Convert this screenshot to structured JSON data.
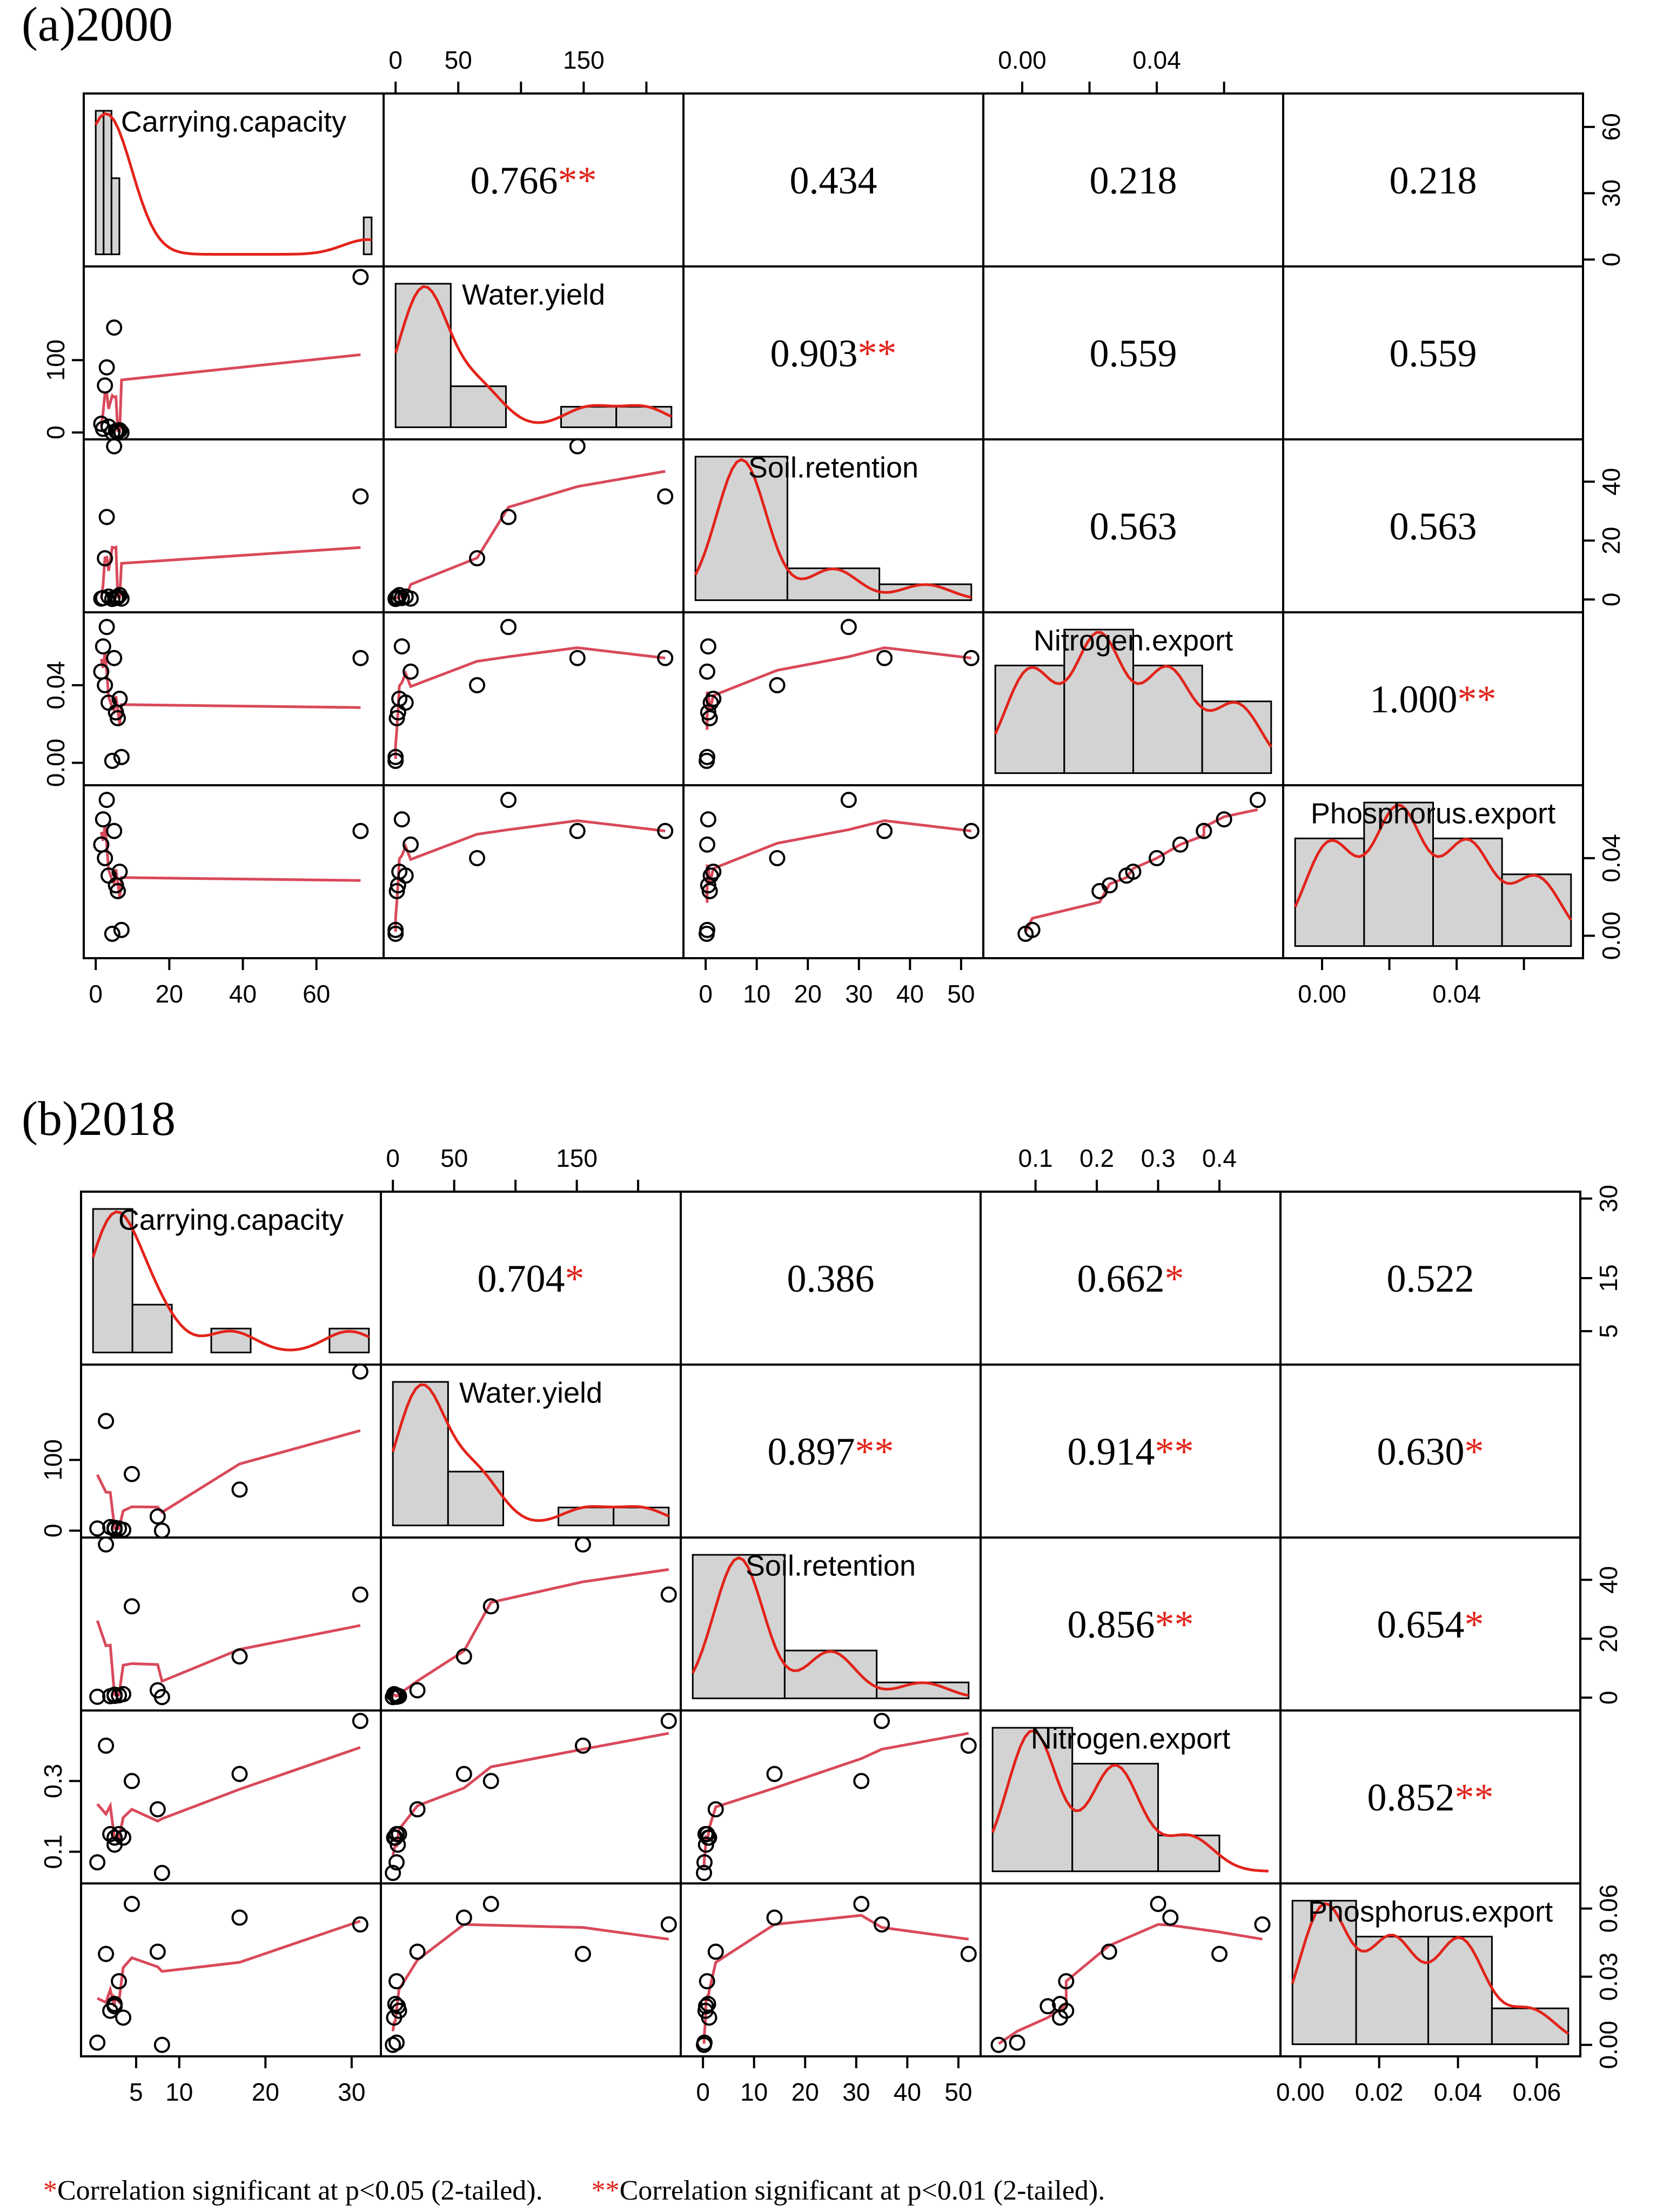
{
  "figure": {
    "footnote": {
      "single_star": "*",
      "single_text": "Correlation significant at p<0.05 (2-tailed).",
      "double_star": "**",
      "double_text": "Correlation significant at p<0.01 (2-tailed)."
    },
    "colors": {
      "axis": "#000000",
      "bar_fill": "#d3d3d3",
      "curve": "#e2231a",
      "smooth": "#d9495a",
      "point": "#000000"
    }
  },
  "chart_data": [
    {
      "type": "scatter",
      "subtype": "correlation-matrix",
      "title": "(a)2000",
      "variables": [
        "Carrying.capacity",
        "Water.yield",
        "Soil.retention",
        "Nitrogen.export",
        "Phosphorus.export"
      ],
      "correlations": [
        {
          "row": 0,
          "col": 1,
          "value": "0.766",
          "sig": "**"
        },
        {
          "row": 0,
          "col": 2,
          "value": "0.434",
          "sig": ""
        },
        {
          "row": 0,
          "col": 3,
          "value": "0.218",
          "sig": ""
        },
        {
          "row": 0,
          "col": 4,
          "value": "0.218",
          "sig": ""
        },
        {
          "row": 1,
          "col": 2,
          "value": "0.903",
          "sig": "**"
        },
        {
          "row": 1,
          "col": 3,
          "value": "0.559",
          "sig": ""
        },
        {
          "row": 1,
          "col": 4,
          "value": "0.559",
          "sig": ""
        },
        {
          "row": 2,
          "col": 3,
          "value": "0.563",
          "sig": ""
        },
        {
          "row": 2,
          "col": 4,
          "value": "0.563",
          "sig": ""
        },
        {
          "row": 3,
          "col": 4,
          "value": "1.000",
          "sig": "**"
        }
      ],
      "ranges": [
        [
          0,
          75
        ],
        [
          0,
          220
        ],
        [
          -2,
          52
        ],
        [
          -0.008,
          0.074
        ],
        [
          -0.008,
          0.074
        ]
      ],
      "points": {
        "Carrying.capacity": [
          1.5,
          2.0,
          2.5,
          3.0,
          3.5,
          4.5,
          5.0,
          5.5,
          6.0,
          6.5,
          7.0,
          72.0
        ],
        "Water.yield": [
          12,
          5,
          65,
          90,
          8,
          0,
          145,
          2,
          1,
          3,
          0,
          215
        ],
        "Soil.retention": [
          0.3,
          0.5,
          14,
          28,
          1,
          0.2,
          52,
          0.5,
          0.8,
          1.5,
          0.3,
          35
        ],
        "Nitrogen.export": [
          0.047,
          0.06,
          0.04,
          0.07,
          0.031,
          0.001,
          0.054,
          0.026,
          0.023,
          0.033,
          0.003,
          0.054
        ],
        "Phosphorus.export": [
          0.047,
          0.06,
          0.04,
          0.07,
          0.031,
          0.001,
          0.054,
          0.026,
          0.023,
          0.033,
          0.003,
          0.054
        ]
      },
      "histograms": [
        {
          "var": "Carrying.capacity",
          "breaks": [
            2,
            4,
            6,
            8,
            70,
            72
          ],
          "counts": [
            66,
            66,
            35,
            0,
            17
          ],
          "density_max": 66
        },
        {
          "var": "Water.yield",
          "breaks": [
            0,
            50,
            100,
            150,
            200,
            250
          ],
          "counts": [
            7,
            2,
            0,
            1,
            1
          ],
          "density_max": 7
        },
        {
          "var": "Soil.retention",
          "breaks": [
            0,
            17,
            34,
            51
          ],
          "counts": [
            9,
            2,
            1
          ],
          "density_max": 9
        },
        {
          "var": "Nitrogen.export",
          "breaks": [
            0,
            0.02,
            0.04,
            0.06,
            0.08
          ],
          "counts": [
            3,
            4,
            3,
            2
          ],
          "density_max": 4
        },
        {
          "var": "Phosphorus.export",
          "breaks": [
            0,
            0.02,
            0.04,
            0.06,
            0.08
          ],
          "counts": [
            3,
            4,
            3,
            2
          ],
          "density_max": 4
        }
      ],
      "axes": {
        "top": [
          {
            "col": 1,
            "ticks": [
              {
                "v": 0,
                "label": "0"
              },
              {
                "v": 50,
                "label": "50"
              },
              {
                "v": 100,
                "label": ""
              },
              {
                "v": 150,
                "label": "150"
              },
              {
                "v": 200,
                "label": ""
              }
            ]
          },
          {
            "col": 3,
            "ticks": [
              {
                "v": 0.0,
                "label": "0.00"
              },
              {
                "v": 0.02,
                "label": ""
              },
              {
                "v": 0.04,
                "label": "0.04"
              },
              {
                "v": 0.06,
                "label": ""
              }
            ]
          }
        ],
        "bottom": [
          {
            "col": 0,
            "ticks": [
              {
                "v": 0,
                "label": "0"
              },
              {
                "v": 20,
                "label": "20"
              },
              {
                "v": 40,
                "label": "40"
              },
              {
                "v": 60,
                "label": "60"
              }
            ]
          },
          {
            "col": 2,
            "ticks": [
              {
                "v": 0,
                "label": "0"
              },
              {
                "v": 10,
                "label": "10"
              },
              {
                "v": 20,
                "label": "20"
              },
              {
                "v": 30,
                "label": "30"
              },
              {
                "v": 40,
                "label": "40"
              },
              {
                "v": 50,
                "label": "50"
              }
            ]
          },
          {
            "col": 4,
            "ticks": [
              {
                "v": 0.0,
                "label": "0.00"
              },
              {
                "v": 0.02,
                "label": ""
              },
              {
                "v": 0.04,
                "label": "0.04"
              },
              {
                "v": 0.06,
                "label": ""
              }
            ]
          }
        ],
        "left": [
          {
            "row": 1,
            "ticks": [
              {
                "v": 0,
                "label": "0"
              },
              {
                "v": 100,
                "label": "100"
              }
            ]
          },
          {
            "row": 3,
            "ticks": [
              {
                "v": 0.0,
                "label": "0.00"
              },
              {
                "v": 0.04,
                "label": "0.04"
              }
            ]
          }
        ],
        "right": [
          {
            "row": 0,
            "range": [
              0,
              72
            ],
            "ticks": [
              {
                "v": 0,
                "label": "0"
              },
              {
                "v": 30,
                "label": "30"
              },
              {
                "v": 60,
                "label": "60"
              }
            ]
          },
          {
            "row": 2,
            "ticks": [
              {
                "v": 0,
                "label": "0"
              },
              {
                "v": 20,
                "label": "20"
              },
              {
                "v": 40,
                "label": "40"
              }
            ]
          },
          {
            "row": 4,
            "ticks": [
              {
                "v": 0.0,
                "label": "0.00"
              },
              {
                "v": 0.04,
                "label": "0.04"
              }
            ]
          }
        ]
      }
    },
    {
      "type": "scatter",
      "subtype": "correlation-matrix",
      "title": "(b)2018",
      "variables": [
        "Carrying.capacity",
        "Water.yield",
        "Soil.retention",
        "Nitrogen.export",
        "Phosphorus.export"
      ],
      "correlations": [
        {
          "row": 0,
          "col": 1,
          "value": "0.704",
          "sig": "*"
        },
        {
          "row": 0,
          "col": 2,
          "value": "0.386",
          "sig": ""
        },
        {
          "row": 0,
          "col": 3,
          "value": "0.662",
          "sig": "*"
        },
        {
          "row": 0,
          "col": 4,
          "value": "0.522",
          "sig": ""
        },
        {
          "row": 1,
          "col": 2,
          "value": "0.897",
          "sig": "**"
        },
        {
          "row": 1,
          "col": 3,
          "value": "0.914",
          "sig": "**"
        },
        {
          "row": 1,
          "col": 4,
          "value": "0.630",
          "sig": "*"
        },
        {
          "row": 2,
          "col": 3,
          "value": "0.856",
          "sig": "**"
        },
        {
          "row": 2,
          "col": 4,
          "value": "0.654",
          "sig": "*"
        },
        {
          "row": 3,
          "col": 4,
          "value": "0.852",
          "sig": "**"
        }
      ],
      "ranges": [
        [
          0,
          32
        ],
        [
          0,
          225
        ],
        [
          -2,
          52
        ],
        [
          0.03,
          0.48
        ],
        [
          -0.002,
          0.068
        ]
      ],
      "points": {
        "Carrying.capacity": [
          0.5,
          1.5,
          2.0,
          2.5,
          3.0,
          3.5,
          4.5,
          7.5,
          8.0,
          17.0,
          31.0,
          2.5
        ],
        "Water.yield": [
          3,
          155,
          5,
          2,
          3,
          1,
          80,
          20,
          0,
          58,
          225,
          4
        ],
        "Soil.retention": [
          0.3,
          52,
          0.5,
          1,
          0.8,
          1.2,
          31,
          2.5,
          0.2,
          14,
          35,
          0.6
        ],
        "Nitrogen.export": [
          0.07,
          0.4,
          0.15,
          0.14,
          0.15,
          0.14,
          0.3,
          0.22,
          0.04,
          0.32,
          0.47,
          0.12
        ],
        "Phosphorus.export": [
          0.001,
          0.04,
          0.015,
          0.018,
          0.028,
          0.012,
          0.062,
          0.041,
          0.0,
          0.056,
          0.053,
          0.017
        ]
      },
      "histograms": [
        {
          "var": "Carrying.capacity",
          "breaks": [
            0,
            4.5,
            9,
            13.5,
            18,
            22.5,
            27,
            31.5
          ],
          "counts": [
            30,
            10,
            0,
            5,
            0,
            0,
            5
          ],
          "density_max": 30
        },
        {
          "var": "Water.yield",
          "breaks": [
            0,
            50,
            100,
            150,
            200,
            250
          ],
          "counts": [
            8,
            3,
            0,
            1,
            1
          ],
          "density_max": 8
        },
        {
          "var": "Soil.retention",
          "breaks": [
            0,
            17,
            34,
            51
          ],
          "counts": [
            9,
            3,
            1
          ],
          "density_max": 9
        },
        {
          "var": "Nitrogen.export",
          "breaks": [
            0.03,
            0.16,
            0.3,
            0.4,
            0.48
          ],
          "counts": [
            4,
            3,
            1,
            0
          ],
          "density_max": 4
        },
        {
          "var": "Phosphorus.export",
          "breaks": [
            0,
            0.015,
            0.032,
            0.047,
            0.065
          ],
          "counts": [
            4,
            3,
            3,
            1
          ],
          "density_max": 4
        }
      ],
      "axes": {
        "top": [
          {
            "col": 1,
            "ticks": [
              {
                "v": 0,
                "label": "0"
              },
              {
                "v": 50,
                "label": "50"
              },
              {
                "v": 100,
                "label": ""
              },
              {
                "v": 150,
                "label": "150"
              },
              {
                "v": 200,
                "label": ""
              }
            ]
          },
          {
            "col": 3,
            "ticks": [
              {
                "v": 0.1,
                "label": "0.1"
              },
              {
                "v": 0.2,
                "label": "0.2"
              },
              {
                "v": 0.3,
                "label": "0.3"
              },
              {
                "v": 0.4,
                "label": "0.4"
              }
            ]
          }
        ],
        "bottom": [
          {
            "col": 0,
            "ticks": [
              {
                "v": 5,
                "label": "5"
              },
              {
                "v": 10,
                "label": "10"
              },
              {
                "v": 20,
                "label": "20"
              },
              {
                "v": 30,
                "label": "30"
              }
            ]
          },
          {
            "col": 2,
            "ticks": [
              {
                "v": 0,
                "label": "0"
              },
              {
                "v": 10,
                "label": "10"
              },
              {
                "v": 20,
                "label": "20"
              },
              {
                "v": 30,
                "label": "30"
              },
              {
                "v": 40,
                "label": "40"
              },
              {
                "v": 50,
                "label": "50"
              }
            ]
          },
          {
            "col": 4,
            "ticks": [
              {
                "v": 0.0,
                "label": "0.00"
              },
              {
                "v": 0.02,
                "label": "0.02"
              },
              {
                "v": 0.04,
                "label": "0.04"
              },
              {
                "v": 0.06,
                "label": "0.06"
              }
            ]
          }
        ],
        "left": [
          {
            "row": 1,
            "ticks": [
              {
                "v": 0,
                "label": "0"
              },
              {
                "v": 100,
                "label": "100"
              }
            ]
          },
          {
            "row": 3,
            "ticks": [
              {
                "v": 0.1,
                "label": "0.1"
              },
              {
                "v": 0.3,
                "label": "0.3"
              }
            ]
          }
        ],
        "right": [
          {
            "row": 0,
            "range": [
              0,
              30
            ],
            "ticks": [
              {
                "v": 5,
                "label": "5"
              },
              {
                "v": 15,
                "label": "15"
              },
              {
                "v": 30,
                "label": "30"
              }
            ]
          },
          {
            "row": 2,
            "ticks": [
              {
                "v": 0,
                "label": "0"
              },
              {
                "v": 20,
                "label": "20"
              },
              {
                "v": 40,
                "label": "40"
              }
            ]
          },
          {
            "row": 4,
            "ticks": [
              {
                "v": 0.0,
                "label": "0.00"
              },
              {
                "v": 0.03,
                "label": "0.03"
              },
              {
                "v": 0.06,
                "label": "0.06"
              }
            ]
          }
        ]
      }
    }
  ]
}
